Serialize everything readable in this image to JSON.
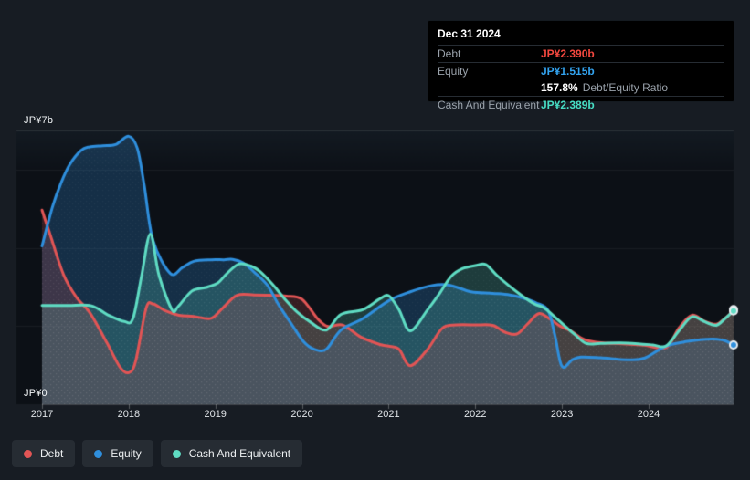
{
  "colors": {
    "page_bg": "#171c23",
    "plot_bg": "#0c1016",
    "debt": "#e25555",
    "equity": "#2f8fdd",
    "cash": "#5fdcc3",
    "debt_value_text": "#f4483f",
    "equity_value_text": "#33a3ef",
    "cash_value_text": "#46dcc3"
  },
  "tooltip": {
    "date": "Dec 31 2024",
    "debt_label": "Debt",
    "debt_value": "JP¥2.390b",
    "equity_label": "Equity",
    "equity_value": "JP¥1.515b",
    "ratio_value": "157.8%",
    "ratio_label": "Debt/Equity Ratio",
    "cash_label": "Cash And Equivalent",
    "cash_value": "JP¥2.389b"
  },
  "legend": [
    {
      "id": "debt",
      "label": "Debt",
      "color": "#e25555"
    },
    {
      "id": "equity",
      "label": "Equity",
      "color": "#2f8fdd"
    },
    {
      "id": "cash",
      "label": "Cash And Equivalent",
      "color": "#5fdcc3"
    }
  ],
  "chart_data": {
    "type": "area",
    "unit": "JP¥ billions",
    "y_axis": {
      "min": 0,
      "max": 7,
      "top_label": "JP¥7b",
      "bottom_label": "JP¥0",
      "gridlines_b": [
        2,
        4,
        6
      ]
    },
    "x_axis": {
      "start": 2017,
      "end": 2024.98,
      "tick_labels": [
        "2017",
        "2018",
        "2019",
        "2020",
        "2021",
        "2022",
        "2023",
        "2024"
      ]
    },
    "series": [
      {
        "name": "Debt",
        "color": "#e25555",
        "fill": "rgba(226,85,85,0.20)",
        "x": [
          2017.0,
          2017.1,
          2017.25,
          2017.4,
          2017.55,
          2017.75,
          2017.9,
          2018.0,
          2018.08,
          2018.2,
          2018.28,
          2018.42,
          2018.58,
          2018.75,
          2018.95,
          2019.08,
          2019.25,
          2019.45,
          2019.65,
          2019.82,
          2020.0,
          2020.18,
          2020.3,
          2020.47,
          2020.68,
          2020.9,
          2021.0,
          2021.12,
          2021.25,
          2021.45,
          2021.62,
          2021.78,
          2022.0,
          2022.2,
          2022.35,
          2022.48,
          2022.6,
          2022.73,
          2022.85,
          2022.98,
          2023.1,
          2023.22,
          2023.32,
          2023.48,
          2023.7,
          2023.95,
          2024.2,
          2024.35,
          2024.5,
          2024.65,
          2024.78,
          2024.88,
          2024.98
        ],
        "values": [
          4.97,
          4.3,
          3.31,
          2.73,
          2.35,
          1.57,
          0.95,
          0.81,
          1.1,
          2.45,
          2.57,
          2.4,
          2.28,
          2.25,
          2.2,
          2.45,
          2.79,
          2.8,
          2.79,
          2.77,
          2.69,
          2.19,
          1.99,
          2.03,
          1.72,
          1.53,
          1.49,
          1.41,
          0.99,
          1.41,
          1.95,
          2.03,
          2.03,
          2.02,
          1.84,
          1.8,
          2.05,
          2.32,
          2.2,
          2.0,
          1.88,
          1.7,
          1.62,
          1.57,
          1.55,
          1.51,
          1.45,
          1.95,
          2.28,
          2.12,
          2.05,
          2.2,
          2.39
        ]
      },
      {
        "name": "Equity",
        "color": "#2f8fdd",
        "fill": "rgba(52,140,212,0.26)",
        "x": [
          2017.0,
          2017.12,
          2017.22,
          2017.32,
          2017.45,
          2017.55,
          2017.7,
          2017.85,
          2018.0,
          2018.1,
          2018.18,
          2018.28,
          2018.48,
          2018.62,
          2018.75,
          2018.95,
          2019.1,
          2019.2,
          2019.32,
          2019.45,
          2019.6,
          2019.73,
          2019.88,
          2020.02,
          2020.14,
          2020.28,
          2020.45,
          2020.7,
          2021.0,
          2021.25,
          2021.5,
          2021.7,
          2021.95,
          2022.2,
          2022.4,
          2022.55,
          2022.7,
          2022.84,
          2022.92,
          2023.0,
          2023.12,
          2023.22,
          2023.45,
          2023.75,
          2023.95,
          2024.2,
          2024.45,
          2024.62,
          2024.75,
          2024.88,
          2024.98
        ],
        "values": [
          4.05,
          5.05,
          5.67,
          6.14,
          6.5,
          6.59,
          6.62,
          6.65,
          6.86,
          6.55,
          5.6,
          4.2,
          3.35,
          3.5,
          3.66,
          3.7,
          3.7,
          3.71,
          3.62,
          3.38,
          3.05,
          2.55,
          2.05,
          1.6,
          1.41,
          1.41,
          1.9,
          2.19,
          2.65,
          2.88,
          3.04,
          3.05,
          2.88,
          2.84,
          2.8,
          2.72,
          2.6,
          2.4,
          1.75,
          0.97,
          1.14,
          1.21,
          1.19,
          1.14,
          1.18,
          1.49,
          1.61,
          1.66,
          1.67,
          1.63,
          1.52
        ]
      },
      {
        "name": "Cash And Equivalent",
        "color": "#5fdcc3",
        "fill": "rgba(95,220,198,0.22)",
        "x": [
          2017.0,
          2017.3,
          2017.57,
          2017.75,
          2017.95,
          2018.05,
          2018.15,
          2018.25,
          2018.35,
          2018.5,
          2018.57,
          2018.73,
          2018.89,
          2019.03,
          2019.13,
          2019.27,
          2019.41,
          2019.52,
          2019.66,
          2019.8,
          2019.95,
          2020.1,
          2020.28,
          2020.45,
          2020.7,
          2020.9,
          2021.0,
          2021.12,
          2021.25,
          2021.45,
          2021.58,
          2021.72,
          2021.85,
          2022.0,
          2022.12,
          2022.25,
          2022.38,
          2022.52,
          2022.68,
          2022.8,
          2022.96,
          2023.14,
          2023.28,
          2023.45,
          2023.67,
          2023.88,
          2024.05,
          2024.2,
          2024.35,
          2024.5,
          2024.65,
          2024.78,
          2024.88,
          2024.98
        ],
        "values": [
          2.53,
          2.53,
          2.52,
          2.3,
          2.12,
          2.2,
          3.3,
          4.36,
          3.3,
          2.42,
          2.5,
          2.9,
          2.99,
          3.11,
          3.34,
          3.59,
          3.54,
          3.39,
          3.07,
          2.7,
          2.35,
          2.1,
          1.9,
          2.3,
          2.42,
          2.7,
          2.78,
          2.42,
          1.88,
          2.42,
          2.81,
          3.27,
          3.47,
          3.55,
          3.58,
          3.3,
          3.05,
          2.81,
          2.57,
          2.46,
          2.15,
          1.8,
          1.56,
          1.56,
          1.57,
          1.55,
          1.52,
          1.49,
          1.88,
          2.24,
          2.11,
          2.02,
          2.19,
          2.39
        ]
      }
    ],
    "end_markers": true,
    "grid": "horizontal-only",
    "legend_position": "bottom-left"
  }
}
